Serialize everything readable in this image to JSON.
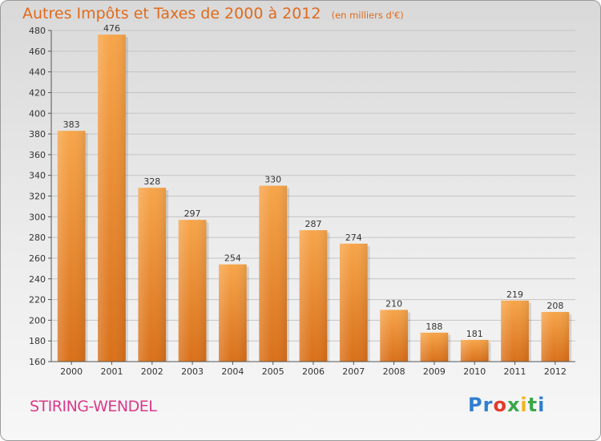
{
  "header": {
    "title": "Autres Impôts et Taxes de 2000 à 2012",
    "unit_note": "(en milliers d'€)"
  },
  "footer": {
    "city": "STIRING-WENDEL",
    "logo": {
      "letters": [
        "P",
        "r",
        "o",
        "x",
        "i",
        "t",
        "i"
      ],
      "colors": [
        "#2f7fd0",
        "#2f7fd0",
        "#e5392b",
        "#3aa64a",
        "#f2b31c",
        "#3aa64a",
        "#2f7fd0"
      ]
    }
  },
  "colors": {
    "bar_light": "#f7a54a",
    "bar_dark": "#d9701a",
    "title": "#e06a1c",
    "city": "#d93a8a"
  },
  "chart_data": {
    "type": "bar",
    "title": "Autres Impôts et Taxes de 2000 à 2012",
    "subtitle": "(en milliers d'€)",
    "categories": [
      "2000",
      "2001",
      "2002",
      "2003",
      "2004",
      "2005",
      "2006",
      "2007",
      "2008",
      "2009",
      "2010",
      "2011",
      "2012"
    ],
    "values": [
      383,
      476,
      328,
      297,
      254,
      330,
      287,
      274,
      210,
      188,
      181,
      219,
      208
    ],
    "ylim": [
      160,
      480
    ],
    "yticks": [
      160,
      180,
      200,
      220,
      240,
      260,
      280,
      300,
      320,
      340,
      360,
      380,
      400,
      420,
      440,
      460,
      480
    ],
    "grid": true,
    "legend": "none"
  }
}
